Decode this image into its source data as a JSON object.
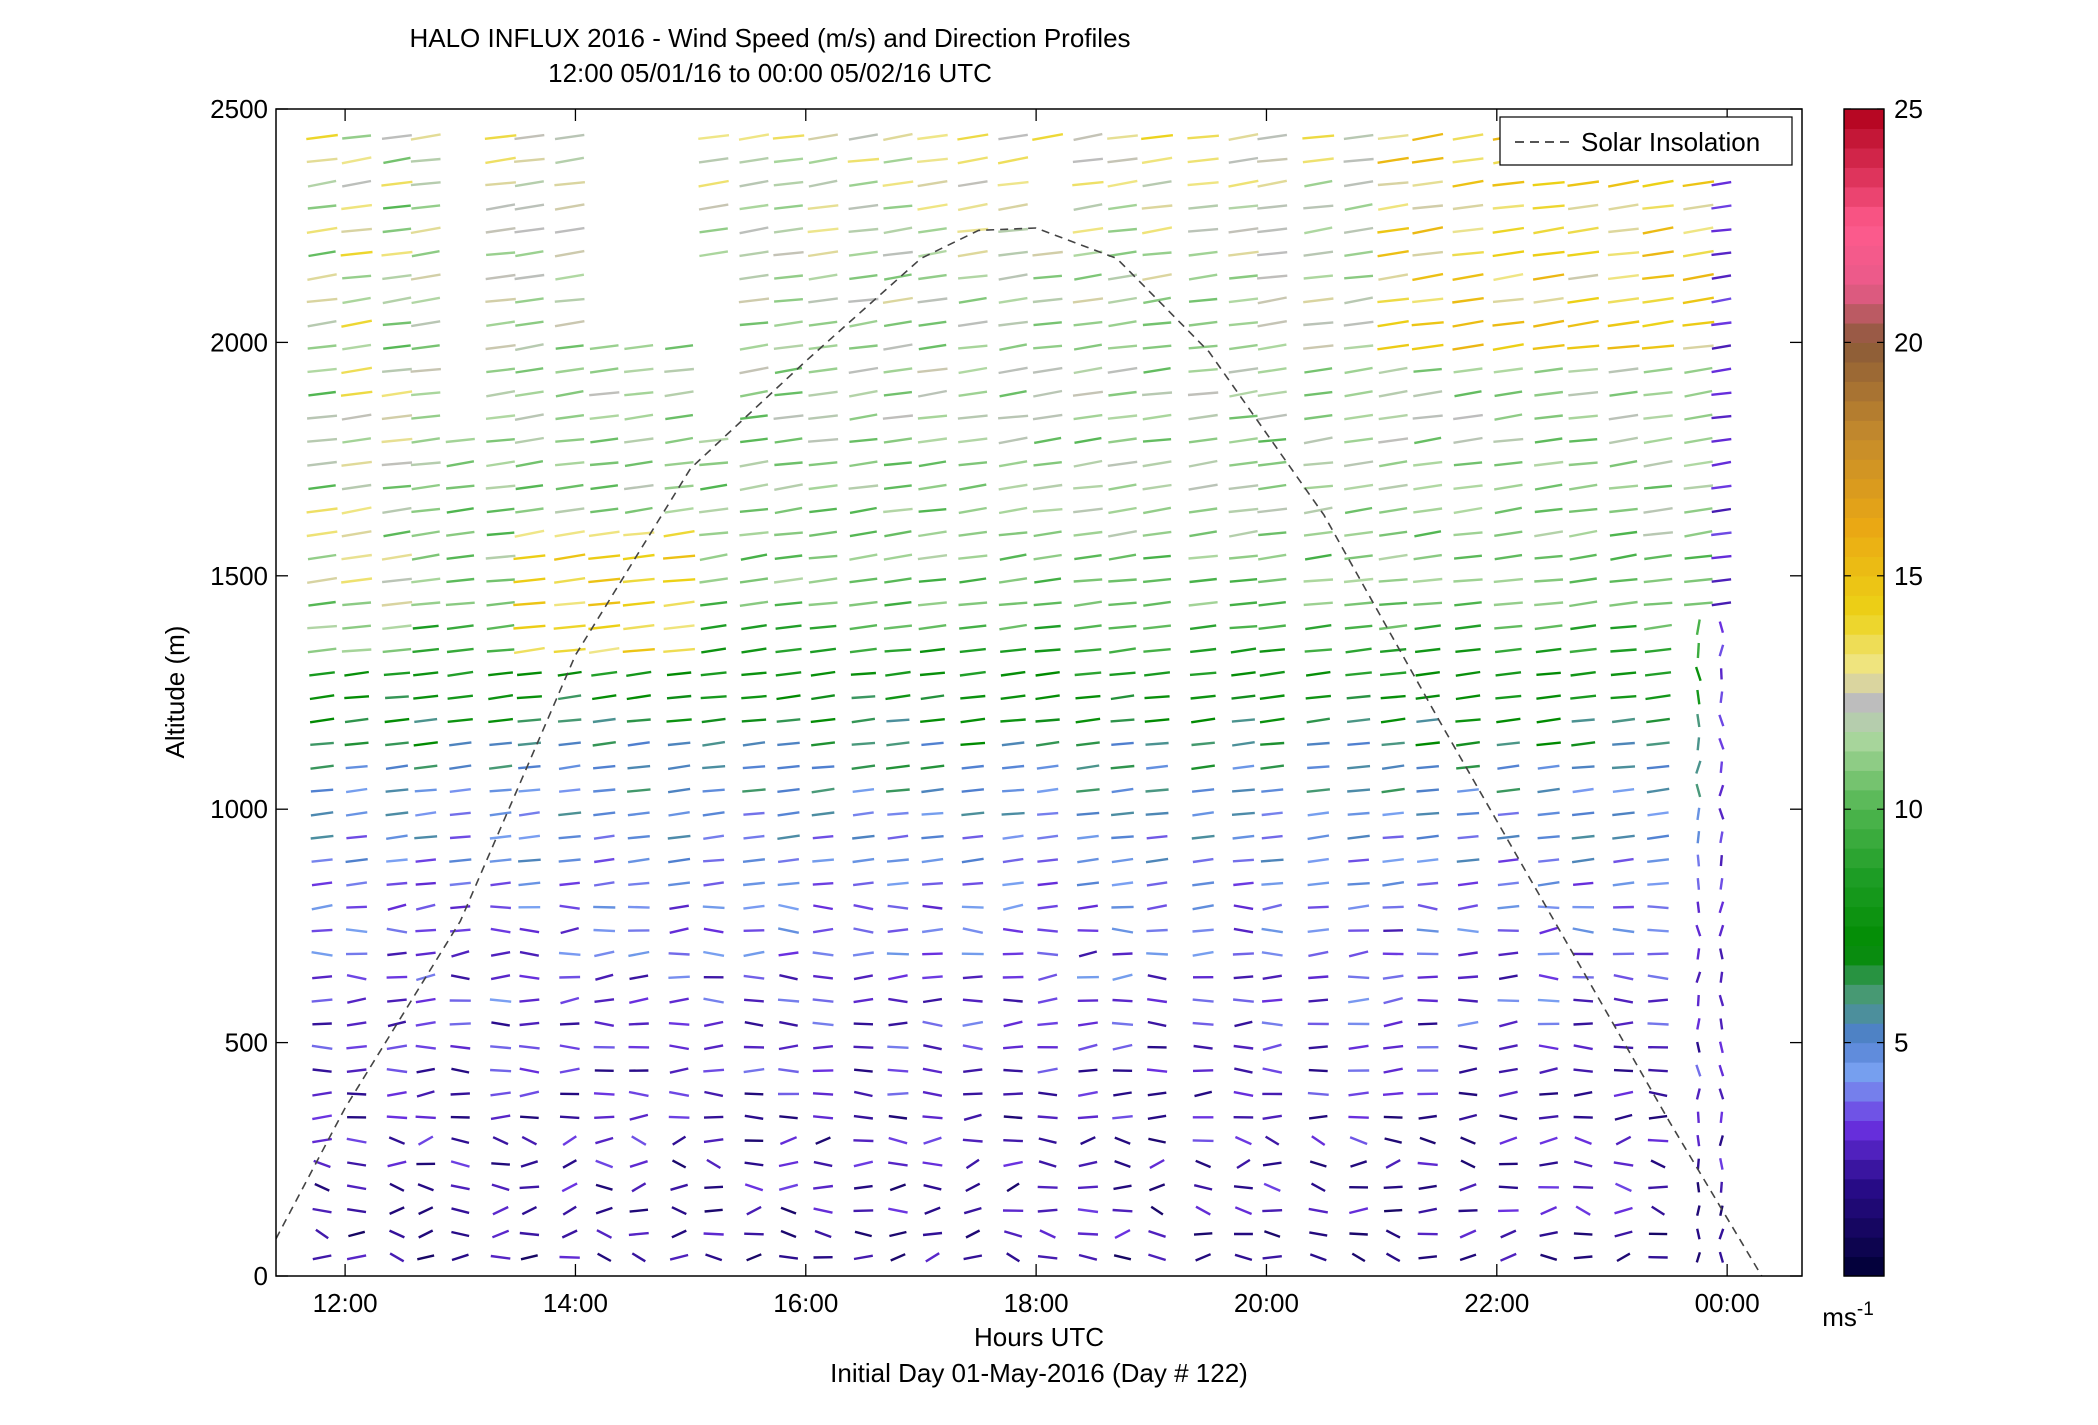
{
  "chart_data": {
    "type": "quiver",
    "title": "HALO INFLUX 2016 - Wind Speed (m/s) and Direction Profiles",
    "subtitle": "12:00 05/01/16 to 00:00 05/02/16  UTC",
    "xlabel": "Hours UTC",
    "xlabel2": "Initial Day 01-May-2016 (Day # 122)",
    "ylabel": "Altitude (m)",
    "xlim": [
      11.4,
      24.65
    ],
    "ylim": [
      0,
      2500
    ],
    "x_ticks": [
      {
        "value": 12,
        "label": "12:00"
      },
      {
        "value": 14,
        "label": "14:00"
      },
      {
        "value": 16,
        "label": "16:00"
      },
      {
        "value": 18,
        "label": "18:00"
      },
      {
        "value": 20,
        "label": "20:00"
      },
      {
        "value": 22,
        "label": "22:00"
      },
      {
        "value": 24,
        "label": "00:00"
      }
    ],
    "y_ticks": [
      {
        "value": 0,
        "label": "0"
      },
      {
        "value": 500,
        "label": "500"
      },
      {
        "value": 1000,
        "label": "1000"
      },
      {
        "value": 1500,
        "label": "1500"
      },
      {
        "value": 2000,
        "label": "2000"
      },
      {
        "value": 2500,
        "label": "2500"
      }
    ],
    "legend": {
      "label": "Solar Insolation",
      "placement": "top-right"
    },
    "colorbar": {
      "range": [
        0,
        25
      ],
      "unit_base": "ms",
      "unit_exp": "-1",
      "ticks": [
        {
          "value": 5,
          "label": "5"
        },
        {
          "value": 10,
          "label": "10"
        },
        {
          "value": 15,
          "label": "15"
        },
        {
          "value": 20,
          "label": "20"
        },
        {
          "value": 25,
          "label": "25"
        }
      ],
      "stops": [
        {
          "v": 0,
          "color": "#000033"
        },
        {
          "v": 2,
          "color": "#2a0c8c"
        },
        {
          "v": 3.2,
          "color": "#6a30e0"
        },
        {
          "v": 4.3,
          "color": "#7aa2f2"
        },
        {
          "v": 5.1,
          "color": "#4f7fcf"
        },
        {
          "v": 6,
          "color": "#4a9a78"
        },
        {
          "v": 7,
          "color": "#008a00"
        },
        {
          "v": 8.5,
          "color": "#1c9c24"
        },
        {
          "v": 10,
          "color": "#4fb54f"
        },
        {
          "v": 11.6,
          "color": "#b0d8a2"
        },
        {
          "v": 12.3,
          "color": "#bdbdbd"
        },
        {
          "v": 13,
          "color": "#efe68a"
        },
        {
          "v": 14.2,
          "color": "#ecd216"
        },
        {
          "v": 16,
          "color": "#eba913"
        },
        {
          "v": 18,
          "color": "#c48a2c"
        },
        {
          "v": 20,
          "color": "#8a5a38"
        },
        {
          "v": 21.2,
          "color": "#e85a8a"
        },
        {
          "v": 22.5,
          "color": "#ff5a8c"
        },
        {
          "v": 25,
          "color": "#b0001a"
        }
      ]
    },
    "solar_insolation_curve": {
      "x": [
        11.4,
        12.0,
        13.0,
        14.0,
        15.0,
        16.0,
        17.0,
        17.5,
        18.0,
        18.7,
        19.5,
        20.5,
        21.5,
        22.5,
        23.5,
        24.3
      ],
      "y": [
        80,
        360,
        760,
        1330,
        1730,
        1960,
        2180,
        2240,
        2245,
        2180,
        1980,
        1630,
        1190,
        760,
        330,
        0
      ]
    },
    "profiles": {
      "times": [
        11.8,
        12.1,
        12.45,
        12.7,
        13.0,
        13.35,
        13.6,
        13.95,
        14.25,
        14.55,
        14.9,
        15.2,
        15.55,
        15.85,
        16.15,
        16.5,
        16.8,
        17.1,
        17.45,
        17.8,
        18.1,
        18.45,
        18.75,
        19.05,
        19.45,
        19.8,
        20.05,
        20.45,
        20.8,
        21.1,
        21.4,
        21.75,
        22.1,
        22.45,
        22.75,
        23.1,
        23.4,
        23.75,
        23.95
      ],
      "altitude_step_m": 50,
      "speed_profile": {
        "altitude_m": [
          0,
          300,
          600,
          800,
          950,
          1100,
          1300,
          1450,
          1600,
          2000,
          2400,
          2500
        ],
        "speed_ms": [
          2.0,
          2.5,
          3.2,
          3.8,
          4.6,
          5.6,
          8.0,
          10.5,
          11.0,
          11.5,
          12.5,
          14.0
        ]
      },
      "direction_note": "Lines show wind direction; most winds from the east-northeast above 800 m, variable near the surface."
    }
  }
}
